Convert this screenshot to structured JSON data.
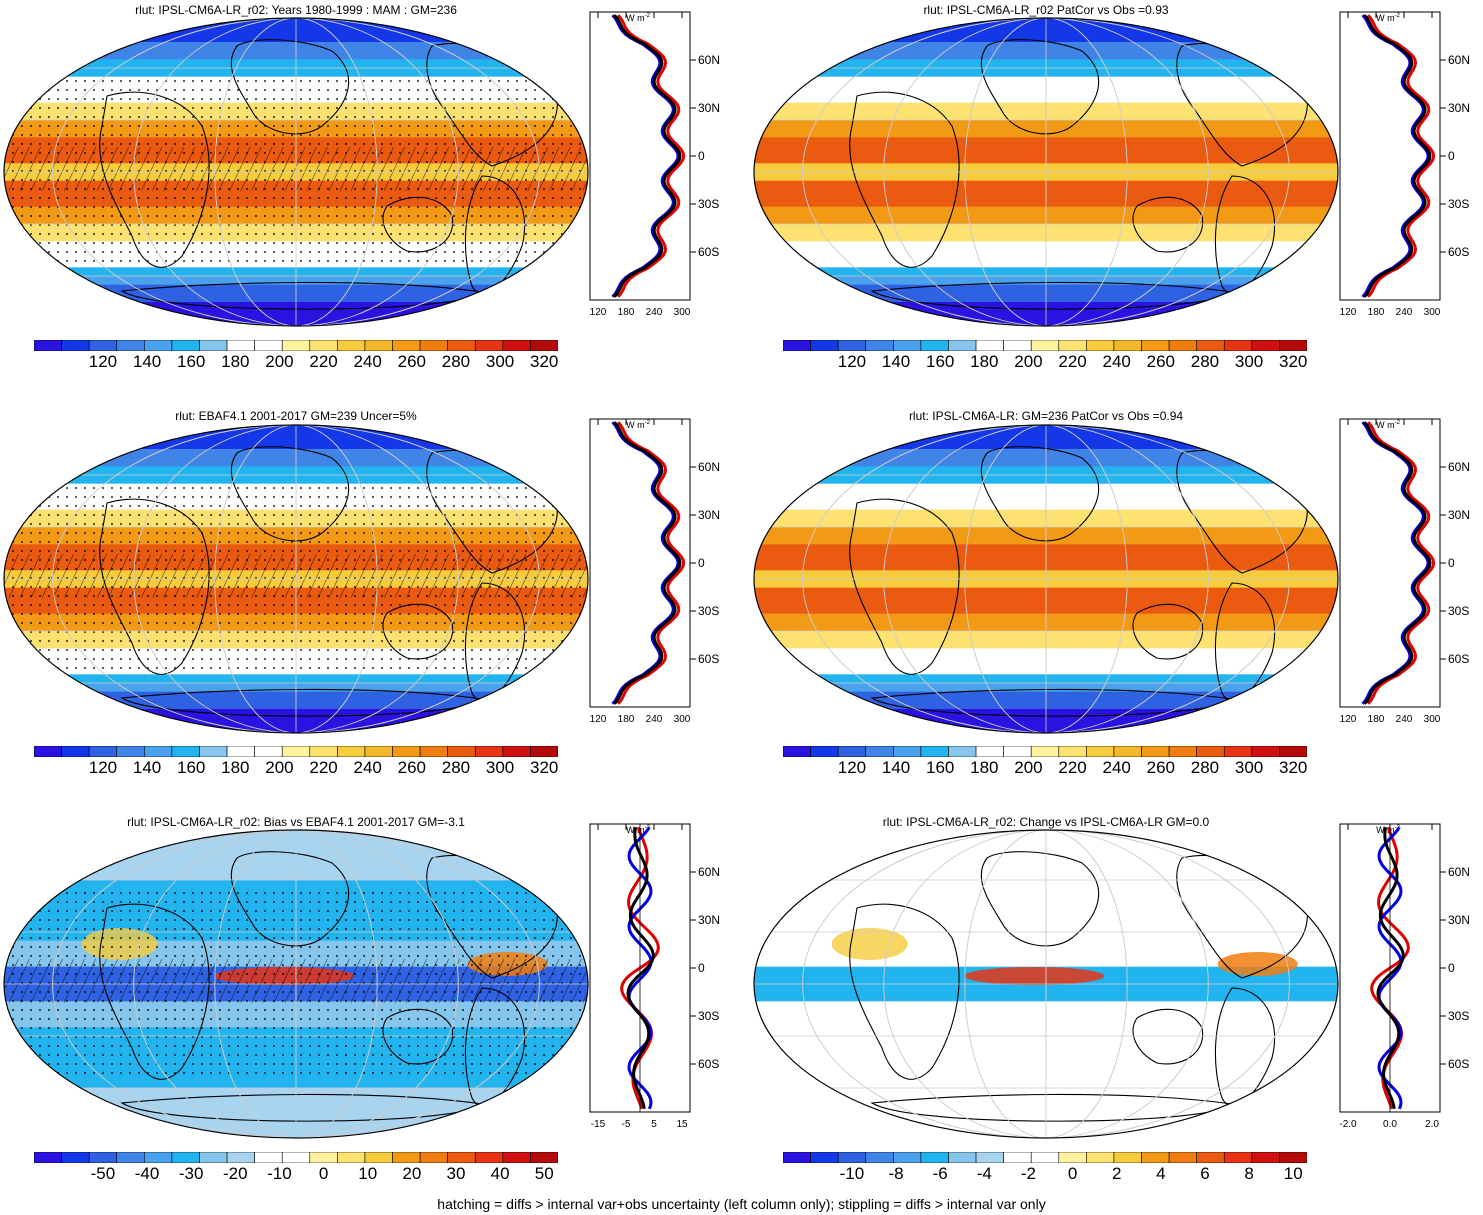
{
  "panels": [
    {
      "title": "rlut: IPSL-CM6A-LR_r02: Years 1980-1999 : MAM : GM=236",
      "colorbar": [
        "120",
        "140",
        "160",
        "180",
        "200",
        "220",
        "240",
        "260",
        "280",
        "300",
        "320"
      ],
      "profile_xticks": [
        "120",
        "180",
        "240",
        "300"
      ]
    },
    {
      "title": "rlut: IPSL-CM6A-LR_r02 PatCor vs Obs =0.93",
      "colorbar": [
        "120",
        "140",
        "160",
        "180",
        "200",
        "220",
        "240",
        "260",
        "280",
        "300",
        "320"
      ],
      "profile_xticks": [
        "120",
        "180",
        "240",
        "300"
      ]
    },
    {
      "title": "rlut: EBAF4.1 2001-2017 GM=239 Uncer=5%",
      "colorbar": [
        "120",
        "140",
        "160",
        "180",
        "200",
        "220",
        "240",
        "260",
        "280",
        "300",
        "320"
      ],
      "profile_xticks": [
        "120",
        "180",
        "240",
        "300"
      ]
    },
    {
      "title": "rlut: IPSL-CM6A-LR: GM=236 PatCor vs Obs =0.94",
      "colorbar": [
        "120",
        "140",
        "160",
        "180",
        "200",
        "220",
        "240",
        "260",
        "280",
        "300",
        "320"
      ],
      "profile_xticks": [
        "120",
        "180",
        "240",
        "300"
      ]
    },
    {
      "title": "rlut: IPSL-CM6A-LR_r02: Bias vs EBAF4.1 2001-2017 GM=-3.1",
      "colorbar": [
        "-50",
        "-40",
        "-30",
        "-20",
        "-10",
        "0",
        "10",
        "20",
        "30",
        "40",
        "50"
      ],
      "profile_xticks": [
        "-15",
        "-5",
        "5",
        "15"
      ]
    },
    {
      "title": "rlut: IPSL-CM6A-LR_r02: Change vs IPSL-CM6A-LR GM=0.0",
      "colorbar": [
        "-10",
        "-8",
        "-6",
        "-4",
        "-2",
        "0",
        "2",
        "4",
        "6",
        "8",
        "10"
      ],
      "profile_xticks": [
        "-2.0",
        "0.0",
        "2.0"
      ]
    }
  ],
  "profile_units": "W m",
  "profile_units_exp": "-2",
  "lat_ticks": [
    "60N",
    "30N",
    "0",
    "30S",
    "60S"
  ],
  "footer": "hatching = diffs > internal var+obs uncertainty (left column only); stippling = diffs > internal var only",
  "colors": {
    "abs_scale": [
      "#2a12e0",
      "#1438e8",
      "#2e62e2",
      "#3f84e6",
      "#4aa2ee",
      "#22b4ee",
      "#86c6ec",
      "#ffffff",
      "#ffffff",
      "#fff3a0",
      "#fde272",
      "#f6cc3c",
      "#f5b72a",
      "#f29a16",
      "#ee7e10",
      "#ea5a10",
      "#e63414",
      "#d01010",
      "#b40a0a"
    ],
    "diff_scale": [
      "#2a12e0",
      "#1438e8",
      "#2e62e2",
      "#3f84e6",
      "#4aa2ee",
      "#22b4ee",
      "#86c6ec",
      "#a8d4f0",
      "#ffffff",
      "#ffffff",
      "#fff3a0",
      "#fde272",
      "#f6cc3c",
      "#f29a16",
      "#ee7e10",
      "#ea5a10",
      "#e63414",
      "#d01010",
      "#b40a0a"
    ],
    "model_line": "#0000e0",
    "obs_line": "#e00000",
    "ref_line": "#000000"
  }
}
